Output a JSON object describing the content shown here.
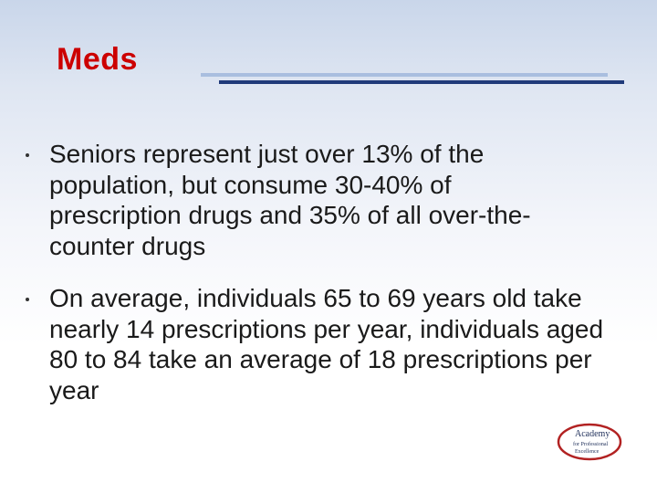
{
  "slide": {
    "title": "Meds",
    "bullets": [
      {
        "text": "Seniors represent just over 13% of the population, but consume 30-40% of prescription drugs and 35% of all over-the-counter drugs"
      },
      {
        "text": "On average, individuals 65 to 69 years old take nearly 14 prescriptions per year, individuals aged 80 to 84 take an average of 18 prescriptions per year"
      }
    ],
    "logo": {
      "line1": "Academy",
      "line2": "for Professional",
      "line3": "Excellence"
    }
  },
  "colors": {
    "title": "#cc0000",
    "rule_dark": "#1f3a7a",
    "rule_light": "#a9bedf",
    "text": "#1a1a1a",
    "logo_red": "#b22222"
  }
}
